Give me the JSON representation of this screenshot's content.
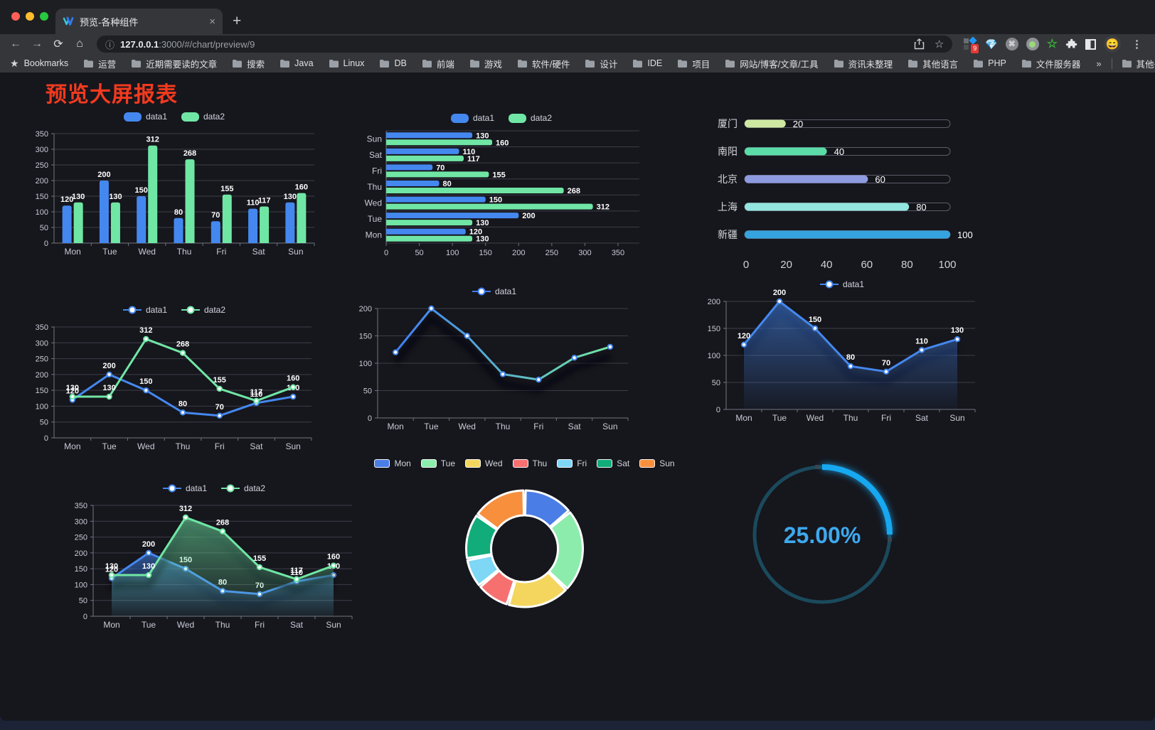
{
  "browser": {
    "tab_title": "预览-各种组件",
    "glyphs": {
      "tab_close": "×",
      "new_tab": "+"
    },
    "url_host": "127.0.0.1",
    "url_path": ":3000/#/chart/preview/9",
    "extension_badge": "9",
    "bookmarks_label": "Bookmarks",
    "bookmark_folders": [
      "运营",
      "近期需要读的文章",
      "搜索",
      "Java",
      "Linux",
      "DB",
      "前端",
      "游戏",
      "软件/硬件",
      "设计",
      "IDE",
      "项目",
      "网站/博客/文章/工具",
      "资讯未整理",
      "其他语言",
      "PHP",
      "文件服务器"
    ],
    "bookmarks_overflow": "»",
    "other_bookmarks": "其他书签"
  },
  "page": {
    "title": "预览大屏报表"
  },
  "chart_data": [
    {
      "type": "bar",
      "legend": "top",
      "value_labels": true,
      "categories": [
        "Mon",
        "Tue",
        "Wed",
        "Thu",
        "Fri",
        "Sat",
        "Sun"
      ],
      "series": [
        {
          "name": "data1",
          "color": "#4488ef",
          "values": [
            120,
            200,
            150,
            80,
            70,
            110,
            130
          ]
        },
        {
          "name": "data2",
          "color": "#70e6a5",
          "values": [
            130,
            130,
            312,
            268,
            155,
            117,
            160
          ]
        }
      ],
      "ylim": [
        0,
        350
      ],
      "ytick": 50
    },
    {
      "type": "bar-horizontal",
      "legend": "top",
      "value_labels": true,
      "categories": [
        "Mon",
        "Tue",
        "Wed",
        "Thu",
        "Fri",
        "Sat",
        "Sun"
      ],
      "series": [
        {
          "name": "data1",
          "color": "#4488ef",
          "values": [
            120,
            200,
            150,
            80,
            70,
            110,
            130
          ]
        },
        {
          "name": "data2",
          "color": "#70e6a5",
          "values": [
            130,
            130,
            312,
            268,
            155,
            117,
            160
          ]
        }
      ],
      "xlim": [
        0,
        350
      ],
      "xtick": 50
    },
    {
      "type": "progress",
      "categories": [
        "厦门",
        "南阳",
        "北京",
        "上海",
        "新疆"
      ],
      "values": [
        20,
        40,
        60,
        80,
        100
      ],
      "colors": [
        "#cee8a2",
        "#5bdba8",
        "#8e9be0",
        "#93e5df",
        "#35a3df"
      ],
      "xlim": [
        0,
        100
      ],
      "xtick": 20
    },
    {
      "type": "line",
      "legend": "top",
      "value_labels": true,
      "categories": [
        "Mon",
        "Tue",
        "Wed",
        "Thu",
        "Fri",
        "Sat",
        "Sun"
      ],
      "series": [
        {
          "name": "data1",
          "color": "#4488ef",
          "values": [
            120,
            200,
            150,
            80,
            70,
            110,
            130
          ]
        },
        {
          "name": "data2",
          "color": "#70e6a5",
          "values": [
            130,
            130,
            312,
            268,
            155,
            117,
            160
          ]
        }
      ],
      "ylim": [
        0,
        350
      ],
      "ytick": 50
    },
    {
      "type": "line",
      "legend": "top",
      "value_labels": false,
      "shadow": true,
      "categories": [
        "Mon",
        "Tue",
        "Wed",
        "Thu",
        "Fri",
        "Sat",
        "Sun"
      ],
      "series": [
        {
          "name": "data1",
          "color": "#4488ef",
          "gradient": [
            "#3f7ef5",
            "#72e6a2"
          ],
          "values": [
            120,
            200,
            150,
            80,
            70,
            110,
            130
          ]
        }
      ],
      "ylim": [
        0,
        200
      ],
      "ytick": 50
    },
    {
      "type": "area",
      "legend": "top",
      "value_labels": true,
      "shadow": true,
      "categories": [
        "Mon",
        "Tue",
        "Wed",
        "Thu",
        "Fri",
        "Sat",
        "Sun"
      ],
      "series": [
        {
          "name": "data1",
          "color": "#4488ef",
          "values": [
            120,
            200,
            150,
            80,
            70,
            110,
            130
          ]
        }
      ],
      "ylim": [
        0,
        200
      ],
      "ytick": 50
    },
    {
      "type": "area",
      "legend": "top",
      "value_labels": true,
      "shadow": true,
      "categories": [
        "Mon",
        "Tue",
        "Wed",
        "Thu",
        "Fri",
        "Sat",
        "Sun"
      ],
      "series": [
        {
          "name": "data1",
          "color": "#4488ef",
          "values": [
            120,
            200,
            150,
            80,
            70,
            110,
            130
          ]
        },
        {
          "name": "data2",
          "color": "#70e6a5",
          "values": [
            130,
            130,
            312,
            268,
            155,
            117,
            160
          ]
        }
      ],
      "ylim": [
        0,
        350
      ],
      "ytick": 50
    },
    {
      "type": "donut",
      "legend": "top",
      "categories": [
        "Mon",
        "Tue",
        "Wed",
        "Thu",
        "Fri",
        "Sat",
        "Sun"
      ],
      "values": [
        120,
        200,
        150,
        80,
        70,
        110,
        130
      ],
      "colors": [
        "#4a7de5",
        "#8cecac",
        "#f4d65f",
        "#f77070",
        "#7ed7f5",
        "#11ac79",
        "#f78f3d"
      ]
    },
    {
      "type": "gauge",
      "value_text": "25.00%",
      "percent": 25,
      "color": "#16a8f0",
      "track_color": "#1a4a5c",
      "text_color": "#3da9ee"
    }
  ]
}
